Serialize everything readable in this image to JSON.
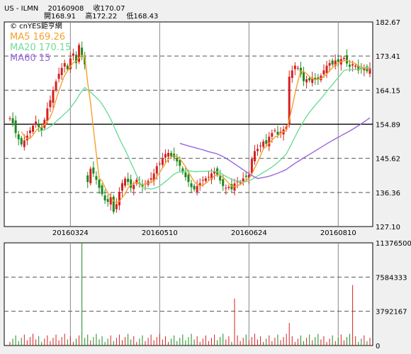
{
  "header": {
    "symbol": "US - ILMN",
    "date": "20160908",
    "close_label": "收170.07",
    "open_label": "開168.91",
    "high_label": "高172.22",
    "low_label": "低168.43"
  },
  "brand": "© cnYES鉅亨網",
  "colors": {
    "up": "#d62020",
    "down": "#1e8a1e",
    "ma5": "#f5a02a",
    "ma20": "#6fdc98",
    "ma60": "#9966dd",
    "grid_dash": "#555555",
    "base_line": "#000000"
  },
  "chart_data": [
    {
      "type": "candlestick",
      "title": "",
      "x_ticks": [
        "20160324",
        "20160510",
        "20160624",
        "20160810"
      ],
      "y_ticks": [
        127.1,
        136.36,
        145.62,
        154.89,
        164.15,
        173.41,
        182.67
      ],
      "ylim": [
        127.1,
        182.67
      ],
      "reference_level": 154.89,
      "grid": "dashed-horizontal",
      "series": [
        {
          "name": "MA5",
          "label": "MA5 169.26",
          "value": 169.26
        },
        {
          "name": "MA20",
          "label": "MA20 170.15",
          "value": 170.15
        },
        {
          "name": "MA60",
          "label": "MA60 15",
          "value": null
        }
      ],
      "closes": [
        156.5,
        155.2,
        152.5,
        150.8,
        149.4,
        150.5,
        151.8,
        153.2,
        154.5,
        155.6,
        154.1,
        153.2,
        156.1,
        159.2,
        161.4,
        164.2,
        166.5,
        168.6,
        170.2,
        171.5,
        169.8,
        172.8,
        174.1,
        171.5,
        176.4,
        173.2,
        171.1,
        139.2,
        142.8,
        141.5,
        139.8,
        137.6,
        135.9,
        134.2,
        133.8,
        135.2,
        131.1,
        133.2,
        136.5,
        138.9,
        140.1,
        139.2,
        137.6,
        138.4,
        139.8,
        138.6,
        137.9,
        138.8,
        139.5,
        140.2,
        141.5,
        143.5,
        144.2,
        145.5,
        146.8,
        147.1,
        146.2,
        145.9,
        144.8,
        143.6,
        141.8,
        140.5,
        139.2,
        137.8,
        137.2,
        138.1,
        138.9,
        139.8,
        140.2,
        140.6,
        141.5,
        142.2,
        141.2,
        139.6,
        138.1,
        137.6,
        137.9,
        137.2,
        138.8,
        139.6,
        139.2,
        140.2,
        140.6,
        141.2,
        145.5,
        147.6,
        148.2,
        149.1,
        150.2,
        149.6,
        151.5,
        152.5,
        153.2,
        152.1,
        152.8,
        153.5,
        154.2,
        167.8,
        169.5,
        170.8,
        170.2,
        168.5,
        166.6,
        167.1,
        166.8,
        167.5,
        166.9,
        167.2,
        168.1,
        169.5,
        170.8,
        171.5,
        171.1,
        172.2,
        171.8,
        172.6,
        172.9,
        171.4,
        170.5,
        171.2,
        170.8,
        169.5,
        169.9,
        170.2,
        169.3,
        170.07
      ],
      "volume_yticks": [
        0,
        3792167,
        7584333,
        11376500
      ],
      "volume_ylim": [
        0,
        11376500
      ],
      "volume_spikes": [
        {
          "index": 25,
          "value": 11376500
        },
        {
          "index": 78,
          "value": 5200000
        },
        {
          "index": 97,
          "value": 2500000
        },
        {
          "index": 119,
          "value": 6700000
        }
      ]
    }
  ]
}
